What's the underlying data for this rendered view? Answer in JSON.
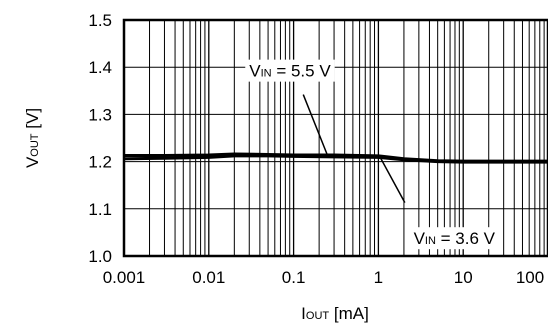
{
  "chart_data": {
    "type": "line",
    "title": "",
    "xlabel": {
      "main": "I",
      "sub": "OUT",
      "unit": " [mA]"
    },
    "ylabel": {
      "main": "V",
      "sub": "OUT",
      "unit": " [V]"
    },
    "x_scale": "log",
    "xlim": [
      0.001,
      100
    ],
    "ylim": [
      1.0,
      1.5
    ],
    "x_ticks": [
      "0.001",
      "0.01",
      "0.1",
      "1",
      "10",
      "100"
    ],
    "y_ticks": [
      "1.0",
      "1.1",
      "1.2",
      "1.3",
      "1.4",
      "1.5"
    ],
    "grid": true,
    "series": [
      {
        "name": "VIN = 5.5 V",
        "color": "#000000",
        "x": [
          0.001,
          0.003,
          0.01,
          0.02,
          0.05,
          0.1,
          0.3,
          1,
          2,
          5,
          10,
          30,
          100
        ],
        "y": [
          1.213,
          1.213,
          1.214,
          1.216,
          1.215,
          1.214,
          1.214,
          1.212,
          1.206,
          1.202,
          1.201,
          1.201,
          1.201
        ]
      },
      {
        "name": "VIN = 3.6 V",
        "color": "#000000",
        "x": [
          0.001,
          0.003,
          0.01,
          0.02,
          0.05,
          0.1,
          0.3,
          1,
          2,
          5,
          10,
          30,
          100
        ],
        "y": [
          1.206,
          1.207,
          1.209,
          1.212,
          1.212,
          1.211,
          1.21,
          1.209,
          1.204,
          1.2,
          1.199,
          1.199,
          1.199
        ]
      }
    ],
    "annotations": [
      {
        "main": "V",
        "sub": "IN",
        "rest": " = 5.5 V",
        "series": 0
      },
      {
        "main": "V",
        "sub": "IN",
        "rest": " = 3.6 V",
        "series": 1
      }
    ]
  }
}
